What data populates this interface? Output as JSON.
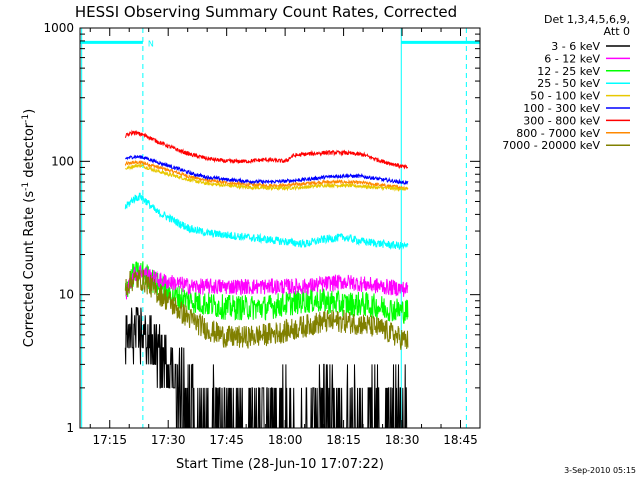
{
  "chart_data": {
    "type": "line",
    "title": "HESSI Observing Summary Count Rates, Corrected",
    "xlabel": "Start Time (28-Jun-10 17:07:22)",
    "ylabel_main": "Corrected Count Rate (s",
    "ylabel_sup1": "-1",
    "ylabel_mid": " detector",
    "ylabel_sup2": "-1",
    "ylabel_end": ")",
    "y_scale": "log",
    "xlim_minutes": [
      1027.37,
      1130.0
    ],
    "ylim": [
      1,
      1000
    ],
    "x_tick_labels": [
      "17:15",
      "17:30",
      "17:45",
      "18:00",
      "18:15",
      "18:30",
      "18:45"
    ],
    "x_tick_minutes": [
      1035,
      1050,
      1065,
      1080,
      1095,
      1110,
      1125
    ],
    "y_tick_labels": [
      "1",
      "10",
      "100",
      "1000"
    ],
    "y_tick_values": [
      1,
      10,
      100,
      1000
    ],
    "legend_header": [
      "Det 1,3,4,5,6,9,",
      "Att 0"
    ],
    "legend_placement": "right",
    "footer_date": "3-Sep-2010 05:15",
    "night_bar_label": "N",
    "night_bar_value": 780,
    "night_intervals_minutes": [
      [
        1027.37,
        1043.5
      ],
      [
        1109.8,
        1130.0
      ]
    ],
    "dashed_lines_minutes": [
      1043.5,
      1126.5
    ],
    "solid_lines_minutes": [
      1027.8,
      1109.8
    ],
    "data_start_minutes": 1039.0,
    "data_end_minutes": 1111.5,
    "series": [
      {
        "name": "3 - 6 keV",
        "color": "#000000",
        "x": [
          1039,
          1041,
          1043,
          1045,
          1047,
          1050,
          1053,
          1056,
          1060,
          1065,
          1070,
          1075,
          1080,
          1085,
          1090,
          1095,
          1100,
          1105,
          1111
        ],
        "y": [
          4.5,
          5.0,
          5.2,
          4.5,
          3.8,
          3.0,
          2.5,
          2.0,
          1.6,
          1.5,
          1.5,
          1.5,
          1.6,
          1.7,
          1.8,
          1.8,
          1.7,
          1.7,
          1.7
        ]
      },
      {
        "name": "6 - 12 keV",
        "color": "#ff00ff",
        "x": [
          1039,
          1041,
          1043,
          1045,
          1047,
          1050,
          1053,
          1056,
          1060,
          1065,
          1070,
          1075,
          1080,
          1085,
          1090,
          1095,
          1100,
          1105,
          1111
        ],
        "y": [
          10,
          14,
          15,
          14,
          13,
          12.5,
          12,
          11.5,
          11.5,
          11.5,
          11.5,
          11.5,
          11.5,
          11.5,
          12,
          12.5,
          12,
          11.5,
          11
        ]
      },
      {
        "name": "12 - 25 keV",
        "color": "#00ff00",
        "x": [
          1039,
          1041,
          1043,
          1045,
          1047,
          1050,
          1053,
          1056,
          1060,
          1065,
          1070,
          1075,
          1080,
          1085,
          1090,
          1095,
          1100,
          1105,
          1111
        ],
        "y": [
          11,
          14,
          15,
          13.5,
          12,
          10.5,
          9.5,
          9,
          8.5,
          8,
          8,
          8,
          8.5,
          9,
          9,
          8.5,
          8.5,
          8,
          7.5
        ]
      },
      {
        "name": "25 - 50 keV",
        "color": "#00ffff",
        "x": [
          1039,
          1041,
          1043,
          1045,
          1047,
          1050,
          1053,
          1056,
          1060,
          1065,
          1070,
          1075,
          1080,
          1085,
          1090,
          1095,
          1100,
          1105,
          1111
        ],
        "y": [
          45,
          52,
          55,
          48,
          42,
          38,
          34,
          31,
          29,
          28,
          27,
          26,
          25,
          24,
          26,
          27,
          25,
          24,
          23
        ]
      },
      {
        "name": "50 - 100 keV",
        "color": "#e8c800",
        "x": [
          1039,
          1041,
          1043,
          1045,
          1047,
          1050,
          1053,
          1056,
          1060,
          1065,
          1070,
          1075,
          1080,
          1085,
          1090,
          1095,
          1100,
          1105,
          1111
        ],
        "y": [
          88,
          92,
          93,
          89,
          85,
          80,
          76,
          72,
          68,
          66,
          64,
          63,
          63,
          64,
          66,
          66,
          65,
          63,
          62
        ]
      },
      {
        "name": "100 - 300 keV",
        "color": "#0000ff",
        "x": [
          1039,
          1041,
          1043,
          1045,
          1047,
          1050,
          1053,
          1056,
          1060,
          1065,
          1070,
          1075,
          1080,
          1085,
          1090,
          1095,
          1100,
          1105,
          1111
        ],
        "y": [
          105,
          108,
          108,
          104,
          99,
          93,
          87,
          81,
          76,
          73,
          71,
          70,
          71,
          73,
          76,
          78,
          77,
          73,
          69
        ]
      },
      {
        "name": "300 - 800 keV",
        "color": "#ff0000",
        "x": [
          1039,
          1041,
          1043,
          1045,
          1047,
          1050,
          1053,
          1056,
          1060,
          1065,
          1070,
          1075,
          1080,
          1082,
          1085,
          1090,
          1095,
          1100,
          1105,
          1111
        ],
        "y": [
          155,
          165,
          160,
          152,
          142,
          130,
          120,
          112,
          105,
          100,
          100,
          103,
          100,
          110,
          113,
          116,
          116,
          112,
          100,
          90
        ]
      },
      {
        "name": "800 - 7000 keV",
        "color": "#ff8800",
        "x": [
          1039,
          1041,
          1043,
          1045,
          1047,
          1050,
          1053,
          1056,
          1060,
          1065,
          1070,
          1075,
          1080,
          1085,
          1090,
          1095,
          1100,
          1105,
          1111
        ],
        "y": [
          95,
          98,
          98,
          95,
          91,
          86,
          81,
          76,
          72,
          69,
          67,
          66,
          66,
          68,
          70,
          70,
          69,
          66,
          63
        ]
      },
      {
        "name": "7000 - 20000 keV",
        "color": "#808000",
        "x": [
          1039,
          1041,
          1043,
          1045,
          1047,
          1050,
          1053,
          1056,
          1060,
          1065,
          1070,
          1075,
          1080,
          1085,
          1090,
          1095,
          1100,
          1105,
          1111
        ],
        "y": [
          11.5,
          13,
          13,
          12,
          10.5,
          9,
          7.5,
          6.5,
          5.5,
          4.8,
          4.8,
          5.0,
          5.3,
          5.8,
          6.3,
          6.3,
          6.0,
          5.5,
          4.5
        ]
      }
    ]
  }
}
